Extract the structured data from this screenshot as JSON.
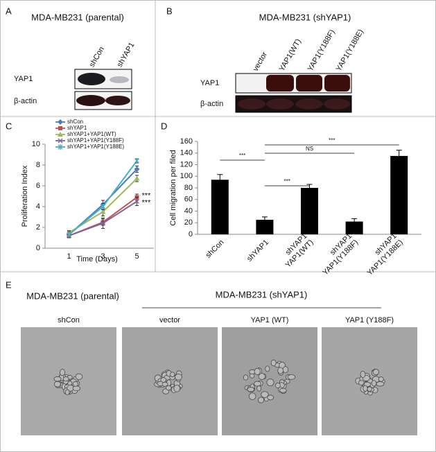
{
  "panel_a": {
    "label": "A",
    "title": "MDA-MB231 (parental)",
    "lanes": [
      "shCon",
      "shYAP1"
    ],
    "rows": [
      "YAP1",
      "β-actin"
    ]
  },
  "panel_b": {
    "label": "B",
    "title": "MDA-MB231 (shYAP1)",
    "lanes": [
      "vector",
      "YAP1(WT)",
      "YAP1(Y188F)",
      "YAP1(Y188E)"
    ],
    "rows": [
      "YAP1",
      "β-actin"
    ]
  },
  "chart_data": [
    {
      "type": "line",
      "panel_label": "C",
      "x_label": "Time (Days)",
      "y_label": "Proliferation Index",
      "categories": [
        "1",
        "3",
        "5"
      ],
      "ylim": [
        0,
        10
      ],
      "yticks": [
        0,
        2,
        4,
        6,
        8,
        10
      ],
      "series": [
        {
          "name": "shCon",
          "color": "#4a7ebb",
          "marker": "diamond",
          "values": [
            1.3,
            4.2,
            7.6
          ],
          "errors": [
            0.3,
            0.4,
            0.3
          ]
        },
        {
          "name": "shYAP1",
          "color": "#c0504d",
          "marker": "square",
          "values": [
            1.2,
            2.5,
            4.9
          ],
          "errors": [
            0.2,
            0.3,
            0.3
          ]
        },
        {
          "name": "shYAP1+YAP1(WT)",
          "color": "#9bbb59",
          "marker": "triangle",
          "values": [
            1.5,
            3.5,
            6.7
          ],
          "errors": [
            0.2,
            0.4,
            0.3
          ]
        },
        {
          "name": "shYAP1+YAP1(Y188F)",
          "color": "#8064a2",
          "marker": "x",
          "values": [
            1.2,
            2.4,
            4.5
          ],
          "errors": [
            0.2,
            0.5,
            0.4
          ]
        },
        {
          "name": "shYAP1+YAP1(Y188E)",
          "color": "#4bacc6",
          "marker": "asterisk",
          "values": [
            1.3,
            4.0,
            8.4
          ],
          "errors": [
            0.3,
            0.3,
            0.2
          ]
        }
      ],
      "annotations": [
        "***",
        "***"
      ]
    },
    {
      "type": "bar",
      "panel_label": "D",
      "y_label": "Cell migration per filed",
      "categories": [
        [
          "shCon"
        ],
        [
          "shYAP1"
        ],
        [
          "shYAP1",
          "YAP1(WT)"
        ],
        [
          "shYAP1",
          "YAP1(Y188F)"
        ],
        [
          "shYAP1",
          "YAP1(Y188E)"
        ]
      ],
      "values": [
        94,
        25,
        80,
        22,
        135
      ],
      "errors": [
        9,
        5,
        6,
        5,
        10
      ],
      "color": "#000000",
      "ylim": [
        0,
        160
      ],
      "yticks": [
        0,
        20,
        40,
        60,
        80,
        100,
        120,
        140,
        160
      ],
      "annotations": [
        "***",
        "***",
        "NS",
        "***"
      ]
    }
  ],
  "panel_e": {
    "label": "E",
    "group_left": "MDA-MB231 (parental)",
    "group_right": "MDA-MB231 (shYAP1)",
    "images": [
      "shCon",
      "vector",
      "YAP1 (WT)",
      "YAP1 (Y188F)"
    ]
  }
}
